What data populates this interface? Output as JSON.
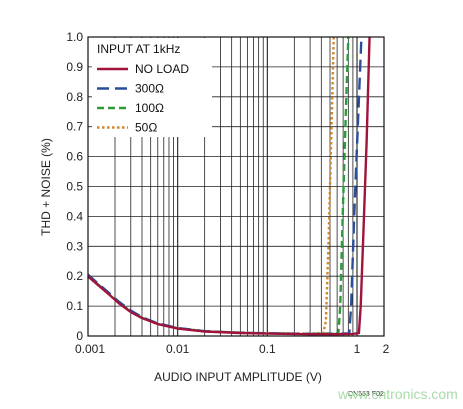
{
  "chart_data": {
    "type": "line",
    "title": "",
    "xlabel": "AUDIO INPUT AMPLITUDE (V)",
    "ylabel": "THD + NOISE (%)",
    "x_scale": "log",
    "xlim": [
      0.001,
      2
    ],
    "ylim": [
      0,
      1.0
    ],
    "x_ticks": [
      {
        "value": 0.001,
        "label": "0.001"
      },
      {
        "value": 0.01,
        "label": "0.01"
      },
      {
        "value": 0.1,
        "label": "0.1"
      },
      {
        "value": 1,
        "label": "1"
      },
      {
        "value": 2,
        "label": "2"
      }
    ],
    "y_ticks": [
      {
        "value": 0,
        "label": "0"
      },
      {
        "value": 0.1,
        "label": "0.1"
      },
      {
        "value": 0.2,
        "label": "0.2"
      },
      {
        "value": 0.3,
        "label": "0.3"
      },
      {
        "value": 0.4,
        "label": "0.4"
      },
      {
        "value": 0.5,
        "label": "0.5"
      },
      {
        "value": 0.6,
        "label": "0.6"
      },
      {
        "value": 0.7,
        "label": "0.7"
      },
      {
        "value": 0.8,
        "label": "0.8"
      },
      {
        "value": 0.9,
        "label": "0.9"
      },
      {
        "value": 1.0,
        "label": "1.0"
      }
    ],
    "grid": true,
    "legend_title": "INPUT AT 1kHz",
    "legend_position": "top-left",
    "series": [
      {
        "name": "NO LOAD",
        "color": "#a0143c",
        "dash": "solid",
        "points": [
          [
            0.001,
            0.2
          ],
          [
            0.0013,
            0.17
          ],
          [
            0.0017,
            0.14
          ],
          [
            0.0022,
            0.11
          ],
          [
            0.003,
            0.08
          ],
          [
            0.004,
            0.06
          ],
          [
            0.006,
            0.04
          ],
          [
            0.01,
            0.025
          ],
          [
            0.02,
            0.015
          ],
          [
            0.05,
            0.01
          ],
          [
            0.1,
            0.008
          ],
          [
            0.3,
            0.006
          ],
          [
            0.6,
            0.006
          ],
          [
            0.9,
            0.007
          ],
          [
            1.05,
            0.01
          ],
          [
            1.1,
            0.1
          ],
          [
            1.18,
            0.35
          ],
          [
            1.28,
            0.65
          ],
          [
            1.38,
            1.0
          ]
        ]
      },
      {
        "name": "300Ω",
        "color": "#2a4d9c",
        "dash": "long-dash",
        "points": [
          [
            0.001,
            0.205
          ],
          [
            0.0013,
            0.175
          ],
          [
            0.0017,
            0.145
          ],
          [
            0.0022,
            0.115
          ],
          [
            0.003,
            0.085
          ],
          [
            0.004,
            0.063
          ],
          [
            0.006,
            0.042
          ],
          [
            0.01,
            0.027
          ],
          [
            0.02,
            0.016
          ],
          [
            0.05,
            0.011
          ],
          [
            0.1,
            0.009
          ],
          [
            0.3,
            0.007
          ],
          [
            0.6,
            0.007
          ],
          [
            0.82,
            0.009
          ],
          [
            0.86,
            0.1
          ],
          [
            0.93,
            0.4
          ],
          [
            1.02,
            0.7
          ],
          [
            1.12,
            1.0
          ]
        ]
      },
      {
        "name": "100Ω",
        "color": "#2e9a3c",
        "dash": "dash",
        "points": [
          [
            0.001,
            0.2
          ],
          [
            0.0013,
            0.172
          ],
          [
            0.0017,
            0.142
          ],
          [
            0.0022,
            0.112
          ],
          [
            0.003,
            0.083
          ],
          [
            0.004,
            0.061
          ],
          [
            0.006,
            0.041
          ],
          [
            0.01,
            0.026
          ],
          [
            0.02,
            0.016
          ],
          [
            0.05,
            0.011
          ],
          [
            0.1,
            0.009
          ],
          [
            0.3,
            0.007
          ],
          [
            0.62,
            0.009
          ],
          [
            0.65,
            0.1
          ],
          [
            0.7,
            0.45
          ],
          [
            0.76,
            0.8
          ],
          [
            0.8,
            1.0
          ]
        ]
      },
      {
        "name": "50Ω",
        "color": "#d2882a",
        "dash": "dot",
        "points": [
          [
            0.001,
            0.198
          ],
          [
            0.0013,
            0.17
          ],
          [
            0.0017,
            0.14
          ],
          [
            0.0022,
            0.11
          ],
          [
            0.003,
            0.082
          ],
          [
            0.004,
            0.06
          ],
          [
            0.006,
            0.04
          ],
          [
            0.01,
            0.026
          ],
          [
            0.02,
            0.016
          ],
          [
            0.05,
            0.011
          ],
          [
            0.1,
            0.009
          ],
          [
            0.3,
            0.008
          ],
          [
            0.42,
            0.01
          ],
          [
            0.45,
            0.05
          ],
          [
            0.48,
            0.3
          ],
          [
            0.52,
            0.7
          ],
          [
            0.55,
            1.0
          ]
        ]
      }
    ]
  },
  "figure_code": "DN563 F02",
  "watermark": "www.cntronics.com"
}
